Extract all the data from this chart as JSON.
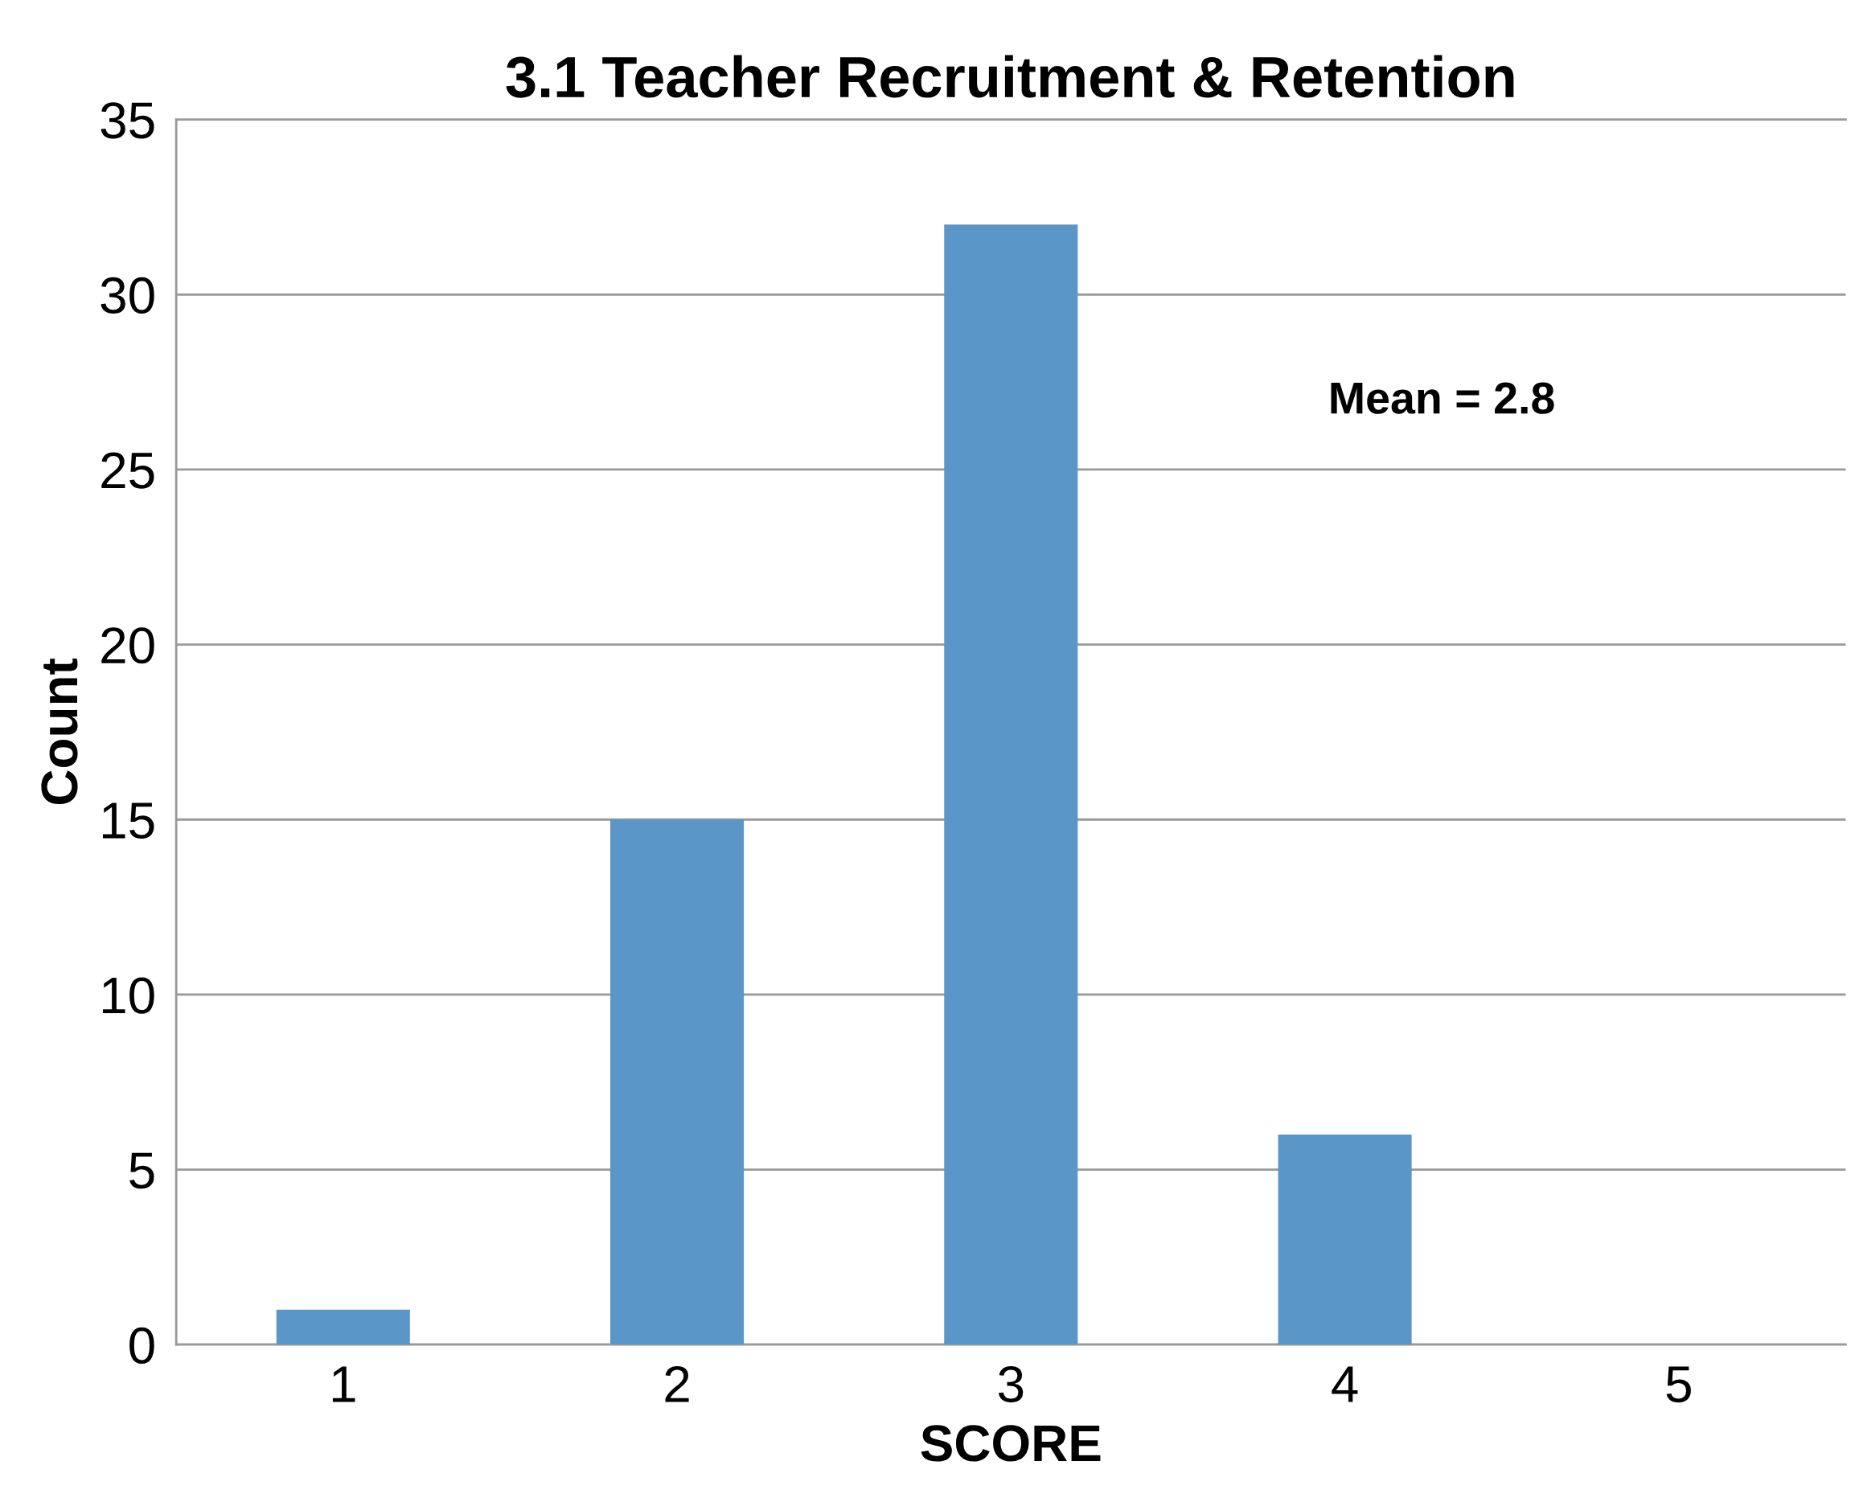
{
  "chart_data": {
    "type": "bar",
    "title": "3.1 Teacher Recruitment & Retention",
    "xlabel": "SCORE",
    "ylabel": "Count",
    "categories": [
      "1",
      "2",
      "3",
      "4",
      "5"
    ],
    "values": [
      1,
      15,
      32,
      6,
      0
    ],
    "color": "#5b96c8",
    "ylim": [
      0,
      35
    ],
    "yticks": [
      0,
      5,
      10,
      15,
      20,
      25,
      30,
      35
    ],
    "grid": "y",
    "legend": false,
    "annotations": [
      "Mean = 2.8"
    ]
  }
}
